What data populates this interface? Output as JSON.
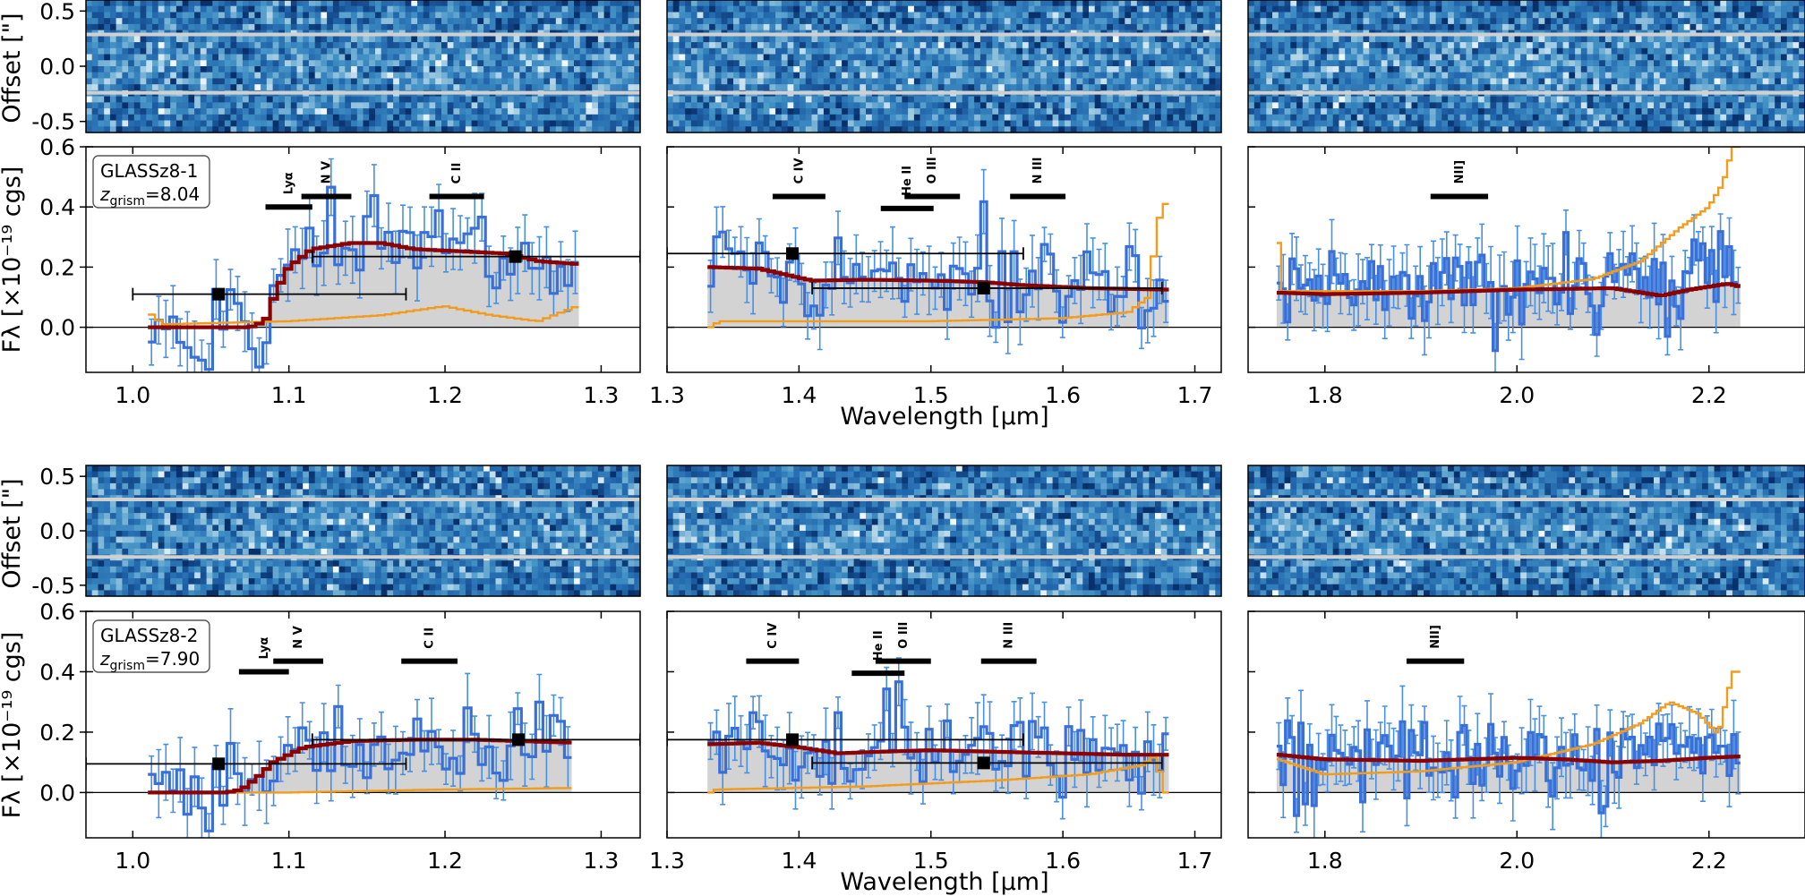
{
  "figure": {
    "ylabel_offset": "Offset [\"]",
    "ylabel_flux": "Fλ [×10⁻¹⁹ cgs]",
    "xlabel": "Wavelength [μm]"
  },
  "colors": {
    "observed": "#3a6fd8",
    "model": "#8b0000",
    "contamination": "#f39c1c",
    "fill": "#d3d3d3",
    "photometry": "#000000"
  },
  "chart_data": [
    {
      "type": "line",
      "object": "GLASSz8-1",
      "z_label": "z",
      "z_sub": "grism",
      "z_value": "=8.04",
      "offset_ticks": [
        "0.5",
        "0.0",
        "-0.5"
      ],
      "flux_ticks": [
        "0.6",
        "0.4",
        "0.2",
        "0.0"
      ],
      "ylim": [
        -0.15,
        0.6
      ],
      "panels": [
        {
          "xlim": [
            0.97,
            1.325
          ],
          "xticks": [
            "1.0",
            "1.1",
            "1.2",
            "1.3"
          ],
          "xtick_values": [
            1.0,
            1.1,
            1.2,
            1.3
          ],
          "data_range": [
            1.012,
            1.285
          ],
          "lines": [
            {
              "label": "Lyα",
              "x0": 1.085,
              "x1": 1.115,
              "y": 0.4
            },
            {
              "label": "N V",
              "x0": 1.108,
              "x1": 1.14,
              "y": 0.435
            },
            {
              "label": "C II",
              "x0": 1.19,
              "x1": 1.225,
              "y": 0.435
            }
          ],
          "model_steps": [
            [
              1.012,
              0.0
            ],
            [
              1.075,
              0.0
            ],
            [
              1.085,
              0.02
            ],
            [
              1.092,
              0.12
            ],
            [
              1.1,
              0.2
            ],
            [
              1.115,
              0.26
            ],
            [
              1.14,
              0.28
            ],
            [
              1.16,
              0.28
            ],
            [
              1.18,
              0.26
            ],
            [
              1.2,
              0.255
            ],
            [
              1.22,
              0.25
            ],
            [
              1.24,
              0.245
            ],
            [
              1.26,
              0.22
            ],
            [
              1.285,
              0.21
            ]
          ],
          "contam_steps": [
            [
              1.01,
              0.05
            ],
            [
              1.02,
              0.01
            ],
            [
              1.1,
              0.02
            ],
            [
              1.16,
              0.04
            ],
            [
              1.2,
              0.07
            ],
            [
              1.23,
              0.04
            ],
            [
              1.26,
              0.02
            ],
            [
              1.285,
              0.07
            ]
          ],
          "photometry": [
            {
              "x": 1.055,
              "y": 0.11,
              "xmin": 1.0,
              "xmax": 1.175,
              "yerr": 0.02
            },
            {
              "x": 1.245,
              "y": 0.235,
              "xmin": 1.115,
              "xmax": 1.325,
              "yerr": 0.02
            }
          ]
        },
        {
          "xlim": [
            1.3,
            1.72
          ],
          "xticks": [
            "1.3",
            "1.4",
            "1.5",
            "1.6",
            "1.7"
          ],
          "xtick_values": [
            1.3,
            1.4,
            1.5,
            1.6,
            1.7
          ],
          "data_range": [
            1.333,
            1.68
          ],
          "lines": [
            {
              "label": "C IV",
              "x0": 1.38,
              "x1": 1.42,
              "y": 0.435
            },
            {
              "label": "He II",
              "x0": 1.462,
              "x1": 1.502,
              "y": 0.395
            },
            {
              "label": "O III",
              "x0": 1.48,
              "x1": 1.522,
              "y": 0.435
            },
            {
              "label": "N III",
              "x0": 1.56,
              "x1": 1.602,
              "y": 0.435
            }
          ],
          "model_steps": [
            [
              1.333,
              0.2
            ],
            [
              1.37,
              0.195
            ],
            [
              1.39,
              0.175
            ],
            [
              1.41,
              0.155
            ],
            [
              1.45,
              0.158
            ],
            [
              1.5,
              0.155
            ],
            [
              1.54,
              0.15
            ],
            [
              1.57,
              0.14
            ],
            [
              1.62,
              0.13
            ],
            [
              1.68,
              0.125
            ]
          ],
          "contam_steps": [
            [
              1.333,
              0.0
            ],
            [
              1.34,
              0.02
            ],
            [
              1.5,
              0.02
            ],
            [
              1.6,
              0.03
            ],
            [
              1.65,
              0.05
            ],
            [
              1.665,
              0.1
            ],
            [
              1.672,
              0.35
            ],
            [
              1.68,
              0.43
            ]
          ],
          "photometry": [
            {
              "x": 1.395,
              "y": 0.245,
              "xmin": 1.3,
              "xmax": 1.57,
              "yerr": 0.02
            },
            {
              "x": 1.54,
              "y": 0.13,
              "xmin": 1.41,
              "xmax": 1.675,
              "yerr": 0.02
            }
          ]
        },
        {
          "xlim": [
            1.72,
            2.3
          ],
          "xticks": [
            "1.8",
            "2.0",
            "2.2"
          ],
          "xtick_values": [
            1.8,
            2.0,
            2.2
          ],
          "data_range": [
            1.752,
            2.233
          ],
          "lines": [
            {
              "label": "NII]",
              "x0": 1.91,
              "x1": 1.97,
              "y": 0.435
            }
          ],
          "model_steps": [
            [
              1.752,
              0.115
            ],
            [
              1.8,
              0.11
            ],
            [
              1.9,
              0.115
            ],
            [
              2.0,
              0.125
            ],
            [
              2.1,
              0.13
            ],
            [
              2.15,
              0.105
            ],
            [
              2.18,
              0.125
            ],
            [
              2.22,
              0.145
            ],
            [
              2.233,
              0.135
            ]
          ],
          "contam_steps": [
            [
              1.752,
              0.28
            ],
            [
              1.755,
              0.12
            ],
            [
              1.9,
              0.12
            ],
            [
              2.0,
              0.13
            ],
            [
              2.08,
              0.16
            ],
            [
              2.13,
              0.22
            ],
            [
              2.17,
              0.33
            ],
            [
              2.2,
              0.4
            ],
            [
              2.215,
              0.48
            ],
            [
              2.225,
              0.6
            ]
          ],
          "photometry": []
        }
      ]
    },
    {
      "type": "line",
      "object": "GLASSz8-2",
      "z_label": "z",
      "z_sub": "grism",
      "z_value": "=7.90",
      "offset_ticks": [
        "0.5",
        "0.0",
        "-0.5"
      ],
      "flux_ticks": [
        "0.6",
        "0.4",
        "0.2",
        "0.0"
      ],
      "ylim": [
        -0.15,
        0.6
      ],
      "panels": [
        {
          "xlim": [
            0.97,
            1.325
          ],
          "xticks": [
            "1.0",
            "1.1",
            "1.2",
            "1.3"
          ],
          "xtick_values": [
            1.0,
            1.1,
            1.2,
            1.3
          ],
          "data_range": [
            1.012,
            1.283
          ],
          "lines": [
            {
              "label": "Lyα",
              "x0": 1.068,
              "x1": 1.1,
              "y": 0.4
            },
            {
              "label": "N V",
              "x0": 1.09,
              "x1": 1.122,
              "y": 0.435
            },
            {
              "label": "C II",
              "x0": 1.172,
              "x1": 1.208,
              "y": 0.435
            }
          ],
          "model_steps": [
            [
              1.012,
              0.0
            ],
            [
              1.06,
              0.0
            ],
            [
              1.07,
              0.01
            ],
            [
              1.08,
              0.05
            ],
            [
              1.09,
              0.1
            ],
            [
              1.11,
              0.15
            ],
            [
              1.14,
              0.17
            ],
            [
              1.18,
              0.175
            ],
            [
              1.22,
              0.175
            ],
            [
              1.25,
              0.17
            ],
            [
              1.283,
              0.165
            ]
          ],
          "contam_steps": [
            [
              1.012,
              0.0
            ],
            [
              1.1,
              0.0
            ],
            [
              1.2,
              0.01
            ],
            [
              1.283,
              0.015
            ]
          ],
          "photometry": [
            {
              "x": 1.055,
              "y": 0.095,
              "xmin": 0.97,
              "xmax": 1.175,
              "yerr": 0.02
            },
            {
              "x": 1.247,
              "y": 0.175,
              "xmin": 1.115,
              "xmax": 1.325,
              "yerr": 0.02
            }
          ]
        },
        {
          "xlim": [
            1.3,
            1.72
          ],
          "xticks": [
            "1.3",
            "1.4",
            "1.5",
            "1.6",
            "1.7"
          ],
          "xtick_values": [
            1.3,
            1.4,
            1.5,
            1.6,
            1.7
          ],
          "data_range": [
            1.333,
            1.678
          ],
          "lines": [
            {
              "label": "C IV",
              "x0": 1.36,
              "x1": 1.4,
              "y": 0.435
            },
            {
              "label": "He II",
              "x0": 1.44,
              "x1": 1.48,
              "y": 0.395
            },
            {
              "label": "O III",
              "x0": 1.458,
              "x1": 1.5,
              "y": 0.435
            },
            {
              "label": "N III",
              "x0": 1.538,
              "x1": 1.58,
              "y": 0.435
            }
          ],
          "model_steps": [
            [
              1.333,
              0.16
            ],
            [
              1.37,
              0.165
            ],
            [
              1.4,
              0.15
            ],
            [
              1.43,
              0.13
            ],
            [
              1.46,
              0.135
            ],
            [
              1.5,
              0.14
            ],
            [
              1.55,
              0.135
            ],
            [
              1.6,
              0.13
            ],
            [
              1.65,
              0.125
            ],
            [
              1.678,
              0.125
            ]
          ],
          "contam_steps": [
            [
              1.333,
              0.0
            ],
            [
              1.338,
              0.01
            ],
            [
              1.45,
              0.02
            ],
            [
              1.55,
              0.04
            ],
            [
              1.62,
              0.06
            ],
            [
              1.66,
              0.09
            ],
            [
              1.67,
              0.12
            ],
            [
              1.678,
              0.0
            ]
          ],
          "photometry": [
            {
              "x": 1.395,
              "y": 0.175,
              "xmin": 1.3,
              "xmax": 1.57,
              "yerr": 0.02
            },
            {
              "x": 1.54,
              "y": 0.098,
              "xmin": 1.41,
              "xmax": 1.675,
              "yerr": 0.02
            }
          ]
        },
        {
          "xlim": [
            1.72,
            2.3
          ],
          "xticks": [
            "1.8",
            "2.0",
            "2.2"
          ],
          "xtick_values": [
            1.8,
            2.0,
            2.2
          ],
          "data_range": [
            1.752,
            2.233
          ],
          "lines": [
            {
              "label": "NII]",
              "x0": 1.885,
              "x1": 1.945,
              "y": 0.435
            }
          ],
          "model_steps": [
            [
              1.752,
              0.125
            ],
            [
              1.8,
              0.11
            ],
            [
              1.9,
              0.105
            ],
            [
              2.0,
              0.115
            ],
            [
              2.05,
              0.11
            ],
            [
              2.1,
              0.1
            ],
            [
              2.15,
              0.105
            ],
            [
              2.2,
              0.115
            ],
            [
              2.233,
              0.12
            ]
          ],
          "contam_steps": [
            [
              1.752,
              0.11
            ],
            [
              1.8,
              0.06
            ],
            [
              1.9,
              0.07
            ],
            [
              2.0,
              0.1
            ],
            [
              2.08,
              0.16
            ],
            [
              2.13,
              0.23
            ],
            [
              2.16,
              0.3
            ],
            [
              2.19,
              0.26
            ],
            [
              2.21,
              0.19
            ],
            [
              2.225,
              0.4
            ]
          ],
          "photometry": []
        }
      ]
    }
  ]
}
